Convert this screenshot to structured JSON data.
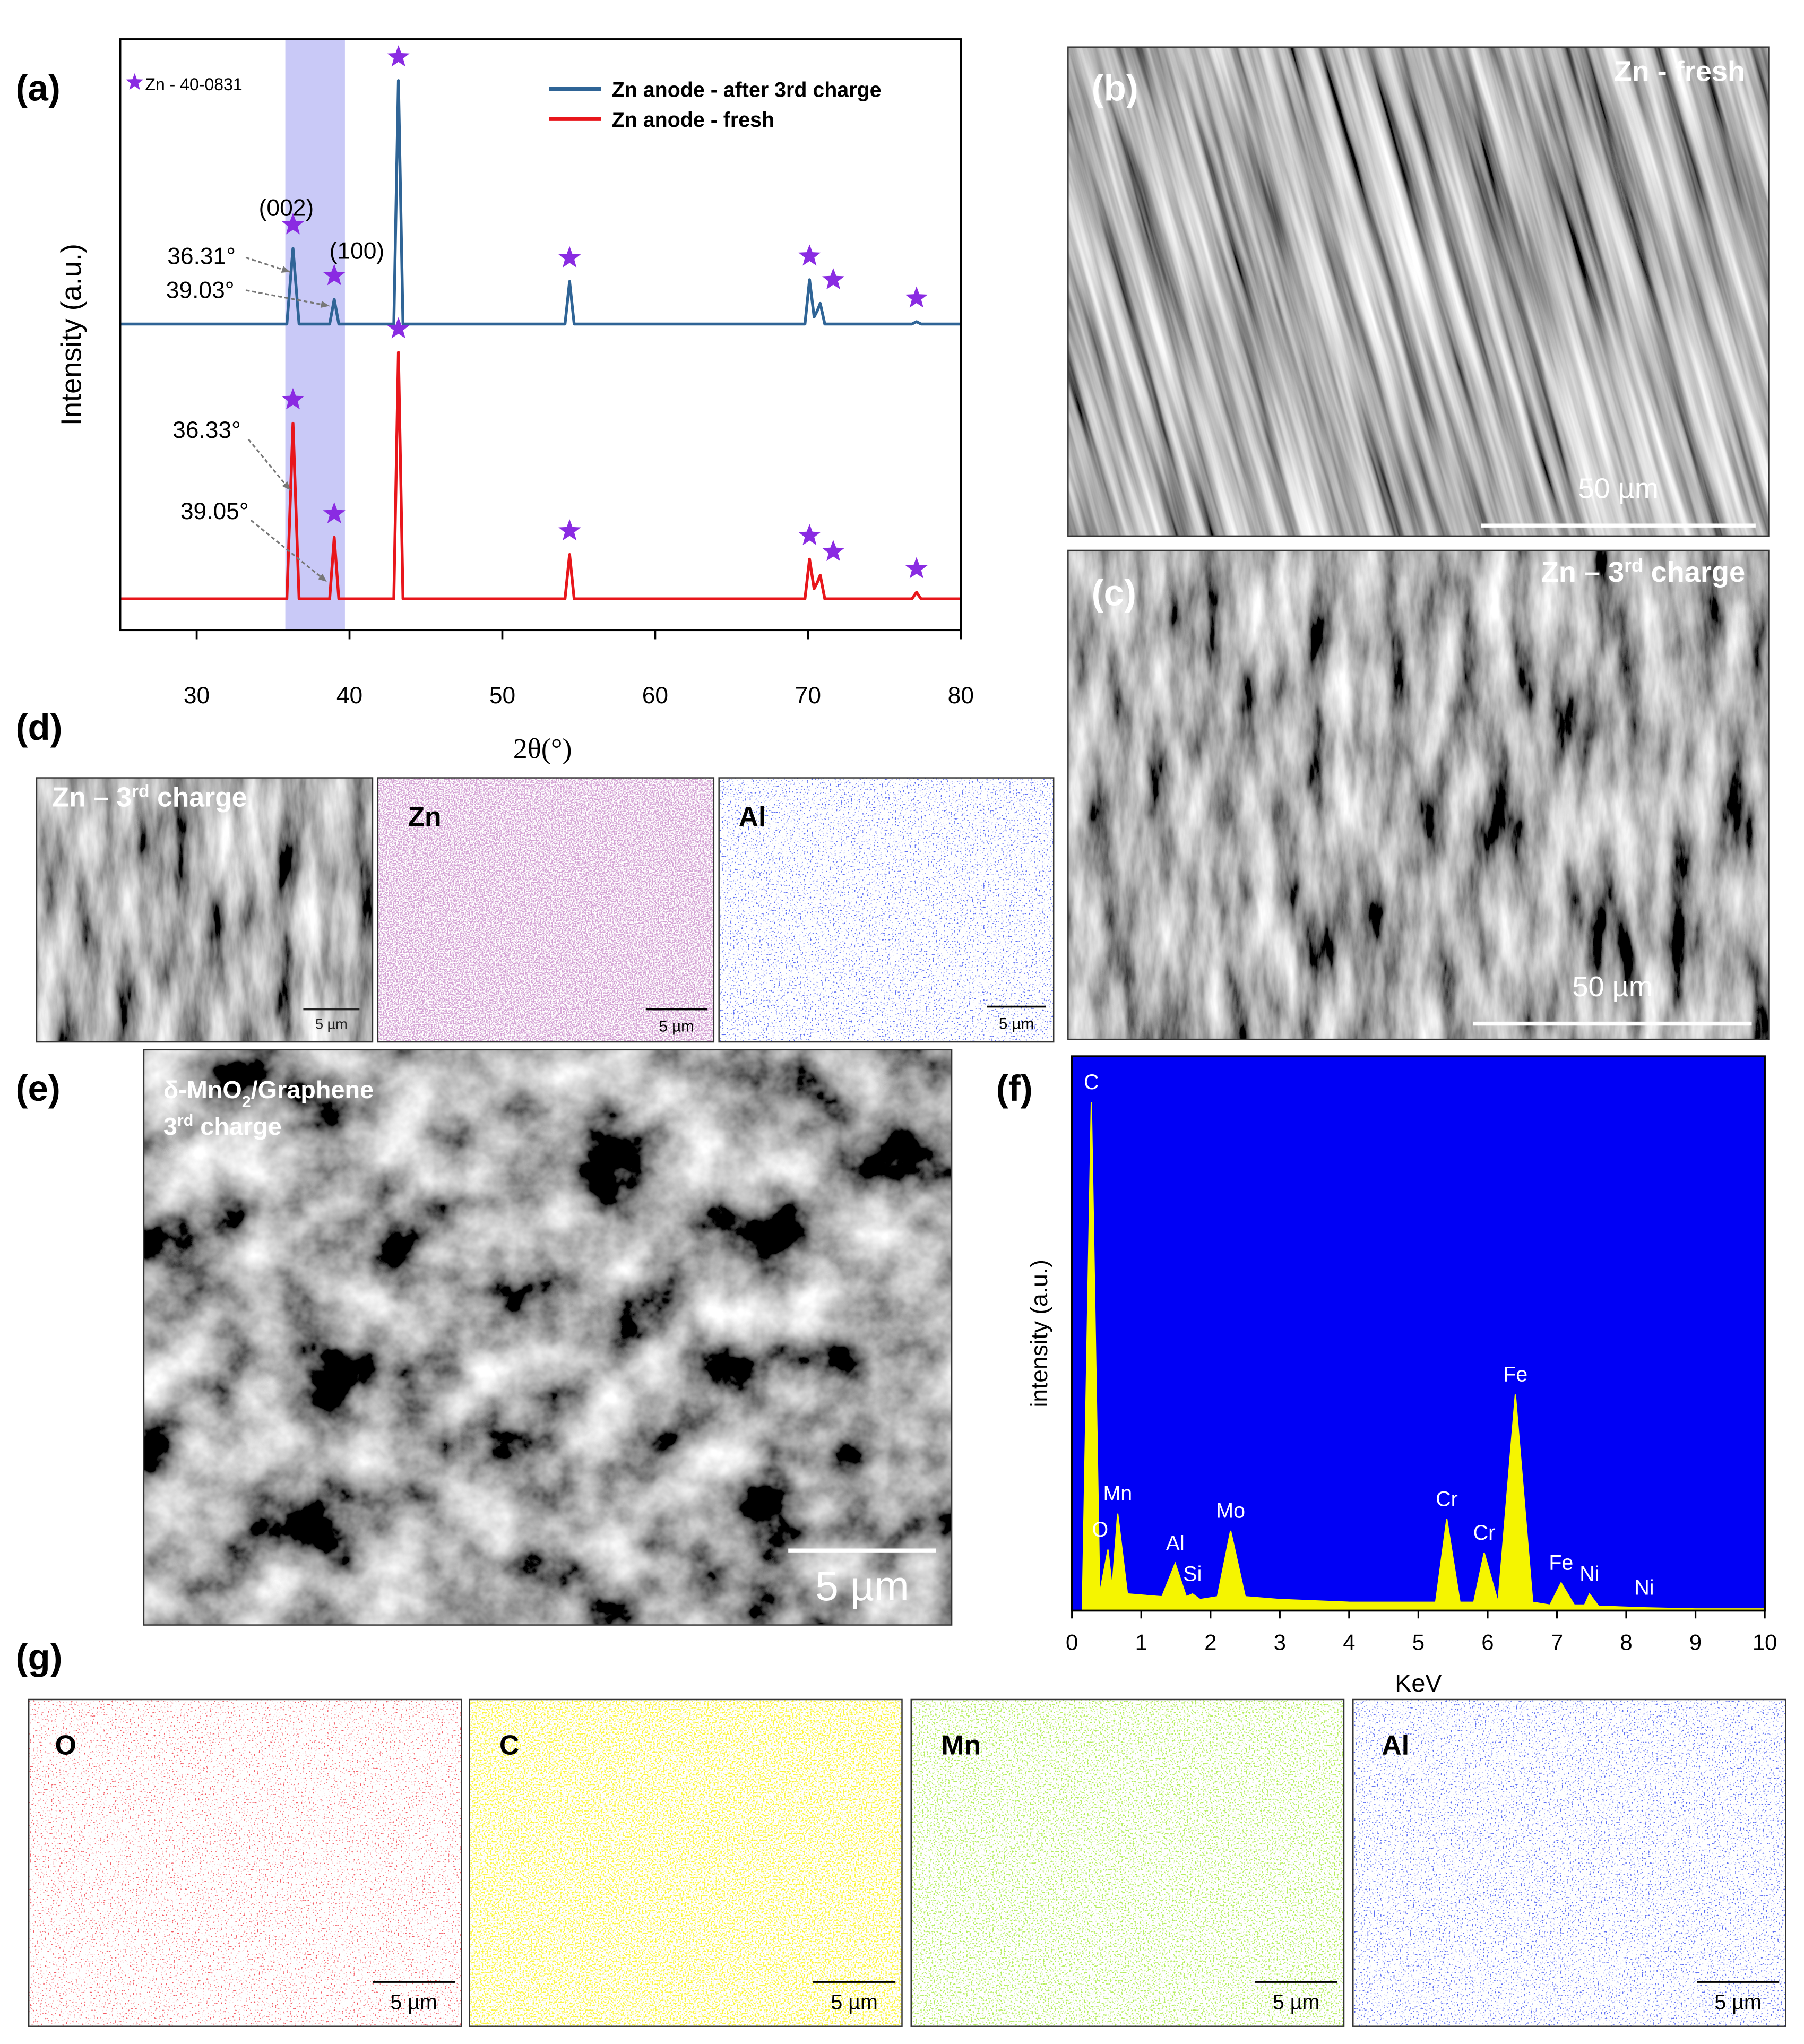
{
  "panel_labels": [
    "(a)",
    "(b)",
    "(c)",
    "(d)",
    "(e)",
    "(f)",
    "(g)"
  ],
  "chart_data": [
    {
      "type": "line",
      "xlabel": "2θ(°)",
      "ylabel": "Intensity (a.u.)",
      "xlim": [
        25,
        80
      ],
      "xticks": [
        30,
        40,
        50,
        60,
        70,
        80
      ],
      "ylim": [
        0,
        100
      ],
      "band_xlim": [
        35.8,
        39.7
      ],
      "band_color": "#c9c9f7",
      "reference_legend": "Zn - 40-0831",
      "marker_color": "#8a2be2",
      "x": [
        25,
        35.9,
        36.3,
        36.7,
        38.7,
        39.0,
        39.3,
        42.9,
        43.2,
        43.5,
        54.1,
        54.4,
        54.7,
        69.8,
        70.1,
        70.4,
        70.6,
        70.8,
        71.1,
        76.8,
        77.1,
        77.4,
        80
      ],
      "series": [
        {
          "name": "Zn anode - after 3rd charge",
          "color": "#2f6496",
          "values": [
            51.8,
            51.8,
            64.6,
            51.8,
            51.8,
            56,
            51.8,
            51.8,
            93,
            51.8,
            51.8,
            59,
            51.8,
            51.8,
            59.3,
            53,
            54,
            55.3,
            51.8,
            51.8,
            52.2,
            51.8,
            51.8
          ]
        },
        {
          "name": "Zn anode - fresh",
          "color": "#e8161b",
          "values": [
            5.3,
            5.3,
            35,
            5.3,
            5.3,
            15.7,
            5.3,
            5.3,
            47,
            5.3,
            5.3,
            12.8,
            5.3,
            5.3,
            12,
            7,
            8,
            9.3,
            5.3,
            5.3,
            6.4,
            5.3,
            5.3
          ]
        }
      ],
      "annotations": [
        "(002)",
        "(100)",
        "36.31°",
        "39.03°",
        "36.33°",
        "39.05°"
      ]
    },
    {
      "type": "area",
      "xlabel": "KeV",
      "ylabel": "intensity (a.u.)",
      "xlim": [
        0,
        10
      ],
      "xticks": [
        0,
        1,
        2,
        3,
        4,
        5,
        6,
        7,
        8,
        9,
        10
      ],
      "ylim": [
        0,
        100
      ],
      "background": "#0000f5",
      "color": "#f5f500",
      "x": [
        0,
        0.15,
        0.28,
        0.4,
        0.52,
        0.58,
        0.66,
        0.8,
        1.3,
        1.49,
        1.65,
        1.74,
        1.85,
        2.1,
        2.29,
        2.5,
        3,
        4,
        5,
        5.25,
        5.41,
        5.6,
        5.8,
        5.95,
        6.15,
        6.4,
        6.65,
        6.9,
        7.06,
        7.25,
        7.4,
        7.47,
        7.6,
        8.26,
        9,
        10
      ],
      "values": [
        0,
        0,
        91.7,
        3,
        11,
        4,
        17.5,
        3,
        2.5,
        8.5,
        2.5,
        3,
        2,
        2.5,
        14.4,
        2.5,
        2,
        1.5,
        1.5,
        1.5,
        16.5,
        1.5,
        1.5,
        10.4,
        1.5,
        39,
        1.5,
        1,
        5,
        1,
        1,
        3,
        0.8,
        0.5,
        0.3,
        0.3
      ],
      "peak_labels": [
        {
          "label": "C",
          "x": 0.28
        },
        {
          "label": "O",
          "x": 0.52
        },
        {
          "label": "Mn",
          "x": 0.66
        },
        {
          "label": "Al",
          "x": 1.49
        },
        {
          "label": "Si",
          "x": 1.74
        },
        {
          "label": "Mo",
          "x": 2.29
        },
        {
          "label": "Cr",
          "x": 5.41
        },
        {
          "label": "Cr",
          "x": 5.95
        },
        {
          "label": "Fe",
          "x": 6.4
        },
        {
          "label": "Fe",
          "x": 7.06
        },
        {
          "label": "Ni",
          "x": 7.47
        },
        {
          "label": "Ni",
          "x": 8.26
        }
      ]
    }
  ],
  "images": [
    {
      "caption": [
        [
          "Zn - fresh"
        ]
      ],
      "scale_bar": "50 µm"
    },
    {
      "caption": [
        [
          "Zn – 3",
          {
            "text": "rd",
            "script": "sup"
          },
          " charge"
        ]
      ],
      "scale_bar": "50 µm"
    },
    {
      "caption": [
        [
          "Zn – 3",
          {
            "text": "rd",
            "script": "sup"
          },
          " charge"
        ]
      ],
      "scale_bar": "5 µm"
    },
    {
      "caption": [
        [
          "Zn"
        ]
      ],
      "scale_bar": "5 µm"
    },
    {
      "caption": [
        [
          "Al"
        ]
      ],
      "scale_bar": "5 µm"
    },
    {
      "caption": [
        [
          "δ-MnO",
          {
            "text": "2",
            "script": "sub"
          },
          "/Graphene"
        ],
        [
          "3",
          {
            "text": "rd",
            "script": "sup"
          },
          " charge"
        ]
      ],
      "scale_bar": "5 µm"
    },
    {
      "caption": [
        [
          "O"
        ]
      ],
      "scale_bar": "5 µm"
    },
    {
      "caption": [
        [
          "C"
        ]
      ],
      "scale_bar": "5 µm"
    },
    {
      "caption": [
        [
          "Mn"
        ]
      ],
      "scale_bar": "5 µm"
    },
    {
      "caption": [
        [
          "Al"
        ]
      ],
      "scale_bar": "5 µm"
    }
  ]
}
